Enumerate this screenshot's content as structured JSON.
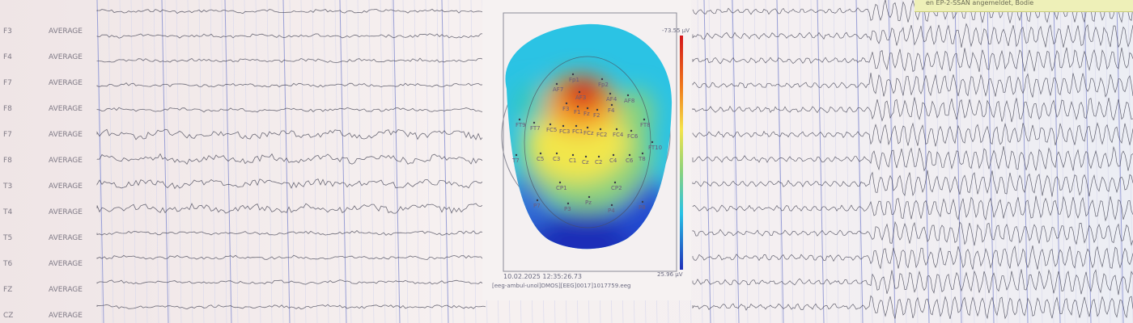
{
  "channels": [
    {
      "name": "",
      "ref": ""
    },
    {
      "name": "F3",
      "ref": "AVERAGE"
    },
    {
      "name": "F4",
      "ref": "AVERAGE"
    },
    {
      "name": "F7",
      "ref": "AVERAGE"
    },
    {
      "name": "F8",
      "ref": "AVERAGE"
    },
    {
      "name": "F7",
      "ref": "AVERAGE"
    },
    {
      "name": "F8",
      "ref": "AVERAGE"
    },
    {
      "name": "T3",
      "ref": "AVERAGE"
    },
    {
      "name": "T4",
      "ref": "AVERAGE"
    },
    {
      "name": "T5",
      "ref": "AVERAGE"
    },
    {
      "name": "T6",
      "ref": "AVERAGE"
    },
    {
      "name": "FZ",
      "ref": "AVERAGE"
    },
    {
      "name": "CZ",
      "ref": "AVERAGE"
    }
  ],
  "topomap": {
    "scale_max": "-73.55 µV",
    "scale_min": "25.96 µV",
    "timestamp": "10.02.2025 12:35:26.73",
    "file": "[eeg-ambul-unol]DMOS][EEG]0017]1017759.eeg",
    "electrodes": [
      "Fp1",
      "Fp2",
      "AF7",
      "AF3",
      "AF4",
      "AF8",
      "F3",
      "F1",
      "Fz",
      "F2",
      "F4",
      "FT9",
      "FT7",
      "FC5",
      "FC3",
      "FC1",
      "FCz",
      "FC2",
      "FC4",
      "FC6",
      "FT8",
      "FT10",
      "T7",
      "C5",
      "C3",
      "C1",
      "Cz",
      "C2",
      "C4",
      "C6",
      "T8",
      "CP1",
      "CP2",
      "P7",
      "P3",
      "Pz",
      "P4",
      "P8"
    ]
  },
  "status_bar": {
    "text": "en   EP-2-SSAN     angemeldet, Bodie"
  },
  "colors": {
    "trace": "#3d3d4e",
    "grid_major": "#9aa0d6",
    "grid_minor": "#d8d8ec",
    "hot": "#d4161a",
    "cold": "#1f2fb8"
  }
}
